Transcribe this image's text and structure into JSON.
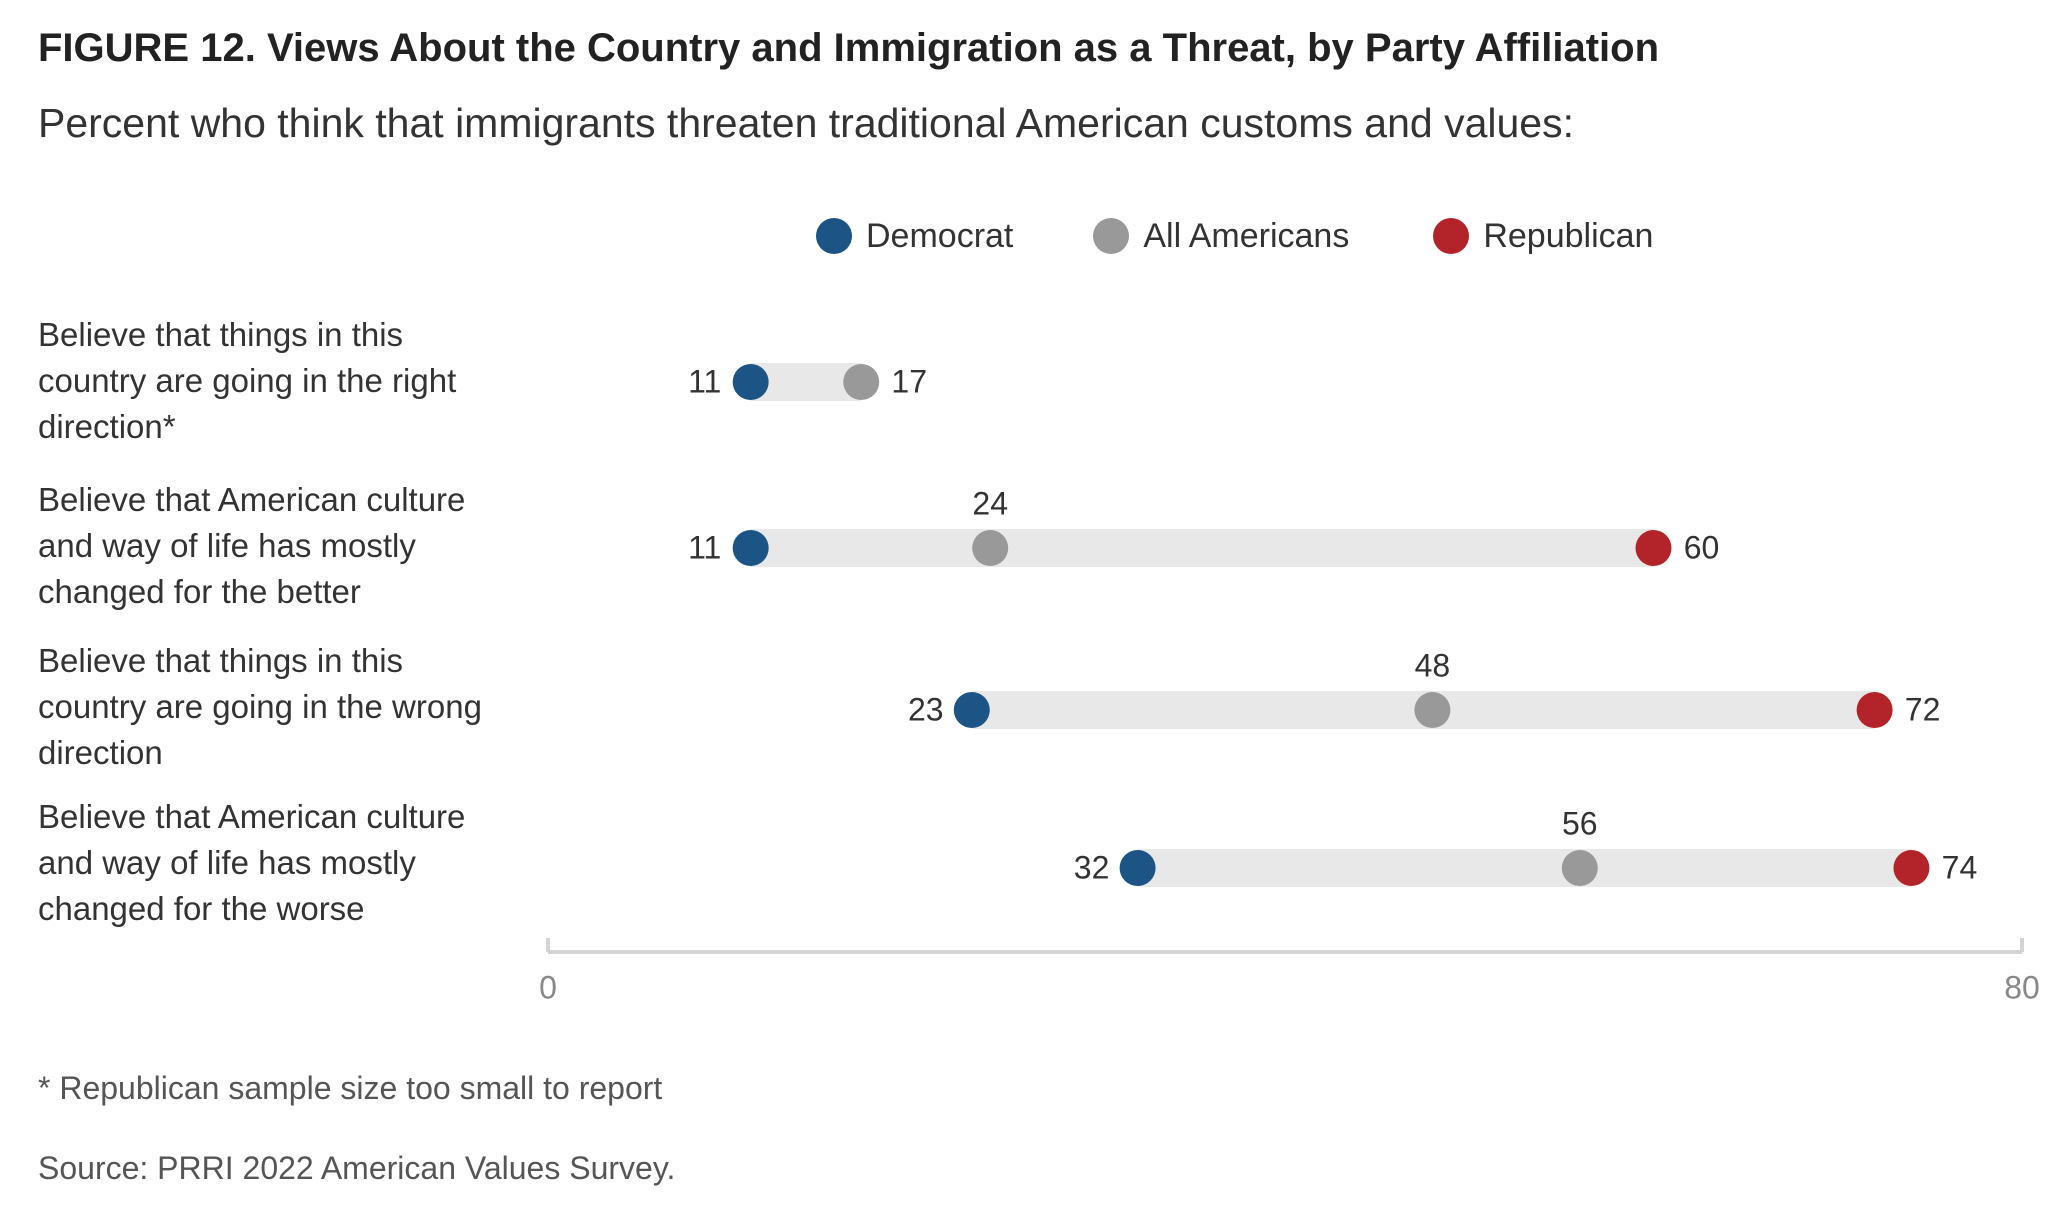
{
  "title": "FIGURE 12.  Views About the Country and Immigration as a Threat, by Party Affiliation",
  "subtitle": "Percent who think that immigrants threaten traditional American customs and values:",
  "footnote": "* Republican sample size too small to report",
  "source": "Source: PRRI 2022 American Values Survey.",
  "colors": {
    "democrat": "#1b5485",
    "all_americans": "#999999",
    "republican": "#b3232a",
    "bar": "#e8e8e8",
    "axis": "#d4d4d4",
    "tick_label": "#888888",
    "value_label": "#333333"
  },
  "chart_data": {
    "type": "dot-range",
    "xlim": [
      0,
      80
    ],
    "x_ticks": [
      "0",
      "80"
    ],
    "legend": {
      "placement": "top-center",
      "items": [
        "Democrat",
        "All Americans",
        "Republican"
      ]
    },
    "categories": [
      [
        "Believe that things in this",
        "country are going in the right",
        "direction*"
      ],
      [
        "Believe that American culture",
        "and way of life has mostly",
        "changed for the better"
      ],
      [
        "Believe that things in this",
        "country are going in the wrong",
        "direction"
      ],
      [
        "Believe that American culture",
        "and way of life has mostly",
        "changed for the worse"
      ]
    ],
    "series": [
      {
        "name": "Democrat",
        "values": [
          11,
          11,
          23,
          32
        ]
      },
      {
        "name": "All Americans",
        "values": [
          17,
          24,
          48,
          56
        ]
      },
      {
        "name": "Republican",
        "values": [
          null,
          60,
          72,
          74
        ]
      }
    ]
  }
}
